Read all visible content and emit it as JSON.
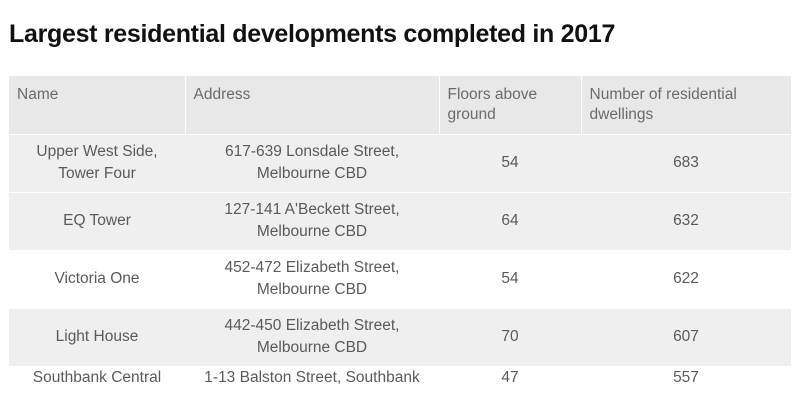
{
  "title": "Largest residential developments completed in 2017",
  "table": {
    "headers": {
      "name": "Name",
      "address": "Address",
      "floors_line1": "Floors above",
      "floors_line2": "ground",
      "dwellings_line1": "Number of residential",
      "dwellings_line2": "dwellings"
    },
    "rows": [
      {
        "name_line1": "Upper West Side,",
        "name_line2": "Tower Four",
        "address_line1": "617-639 Lonsdale Street,",
        "address_line2": "Melbourne CBD",
        "floors": "54",
        "dwellings": "683"
      },
      {
        "name_line1": "EQ Tower",
        "name_line2": "",
        "address_line1": "127-141 A'Beckett Street,",
        "address_line2": "Melbourne CBD",
        "floors": "64",
        "dwellings": "632"
      },
      {
        "name_line1": "Victoria One",
        "name_line2": "",
        "address_line1": "452-472 Elizabeth Street,",
        "address_line2": "Melbourne CBD",
        "floors": "54",
        "dwellings": "622"
      },
      {
        "name_line1": "Light House",
        "name_line2": "",
        "address_line1": "442-450 Elizabeth Street,",
        "address_line2": "Melbourne CBD",
        "floors": "70",
        "dwellings": "607"
      },
      {
        "name_line1": "Southbank Central",
        "name_line2": "",
        "address_line1": "1-13 Balston Street, Southbank",
        "address_line2": "",
        "floors": "47",
        "dwellings": "557"
      }
    ]
  }
}
